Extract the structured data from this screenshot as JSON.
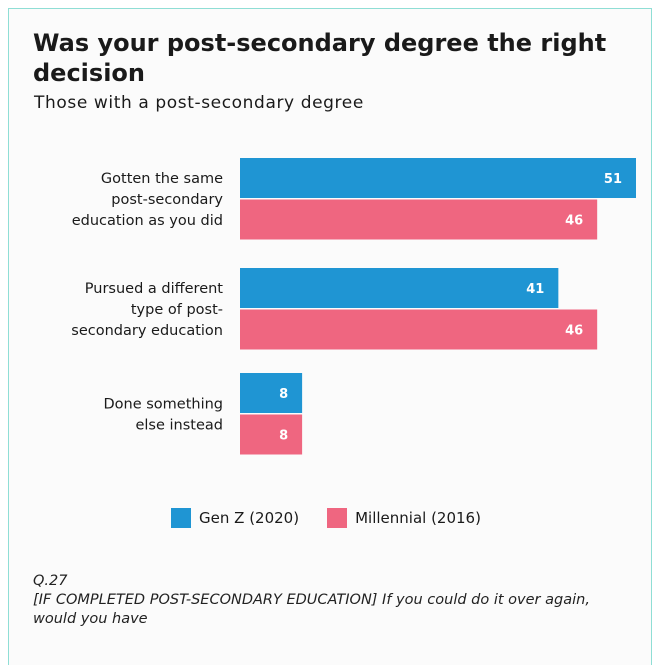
{
  "title": "Was your post-secondary degree the right decision",
  "subtitle": "Those with a post-secondary degree",
  "colors": {
    "gen_z": "#1f95d3",
    "millennial": "#ef6680"
  },
  "chart_data": {
    "type": "bar",
    "orientation": "horizontal",
    "title": "Was your post-secondary degree the right decision",
    "subtitle": "Those with a post-secondary degree",
    "categories": [
      [
        "Gotten the same",
        "post-secondary",
        "education as you did"
      ],
      [
        "Pursued a different",
        "type of post-",
        "secondary education"
      ],
      [
        "Done something",
        "else instead"
      ]
    ],
    "series": [
      {
        "name": "Gen Z (2020)",
        "values": [
          51,
          41,
          8
        ]
      },
      {
        "name": "Millennial (2016)",
        "values": [
          46,
          46,
          8
        ]
      }
    ],
    "xlim": [
      0,
      51
    ],
    "grid": false,
    "legend_position": "bottom-center",
    "data_labels": true
  },
  "legend": [
    {
      "label": "Gen Z (2020)",
      "color_key": "gen_z"
    },
    {
      "label": "Millennial (2016)",
      "color_key": "millennial"
    }
  ],
  "footnote": {
    "question": "Q.27",
    "text": "[IF COMPLETED POST-SECONDARY EDUCATION] If you could do it over again, would you have"
  }
}
